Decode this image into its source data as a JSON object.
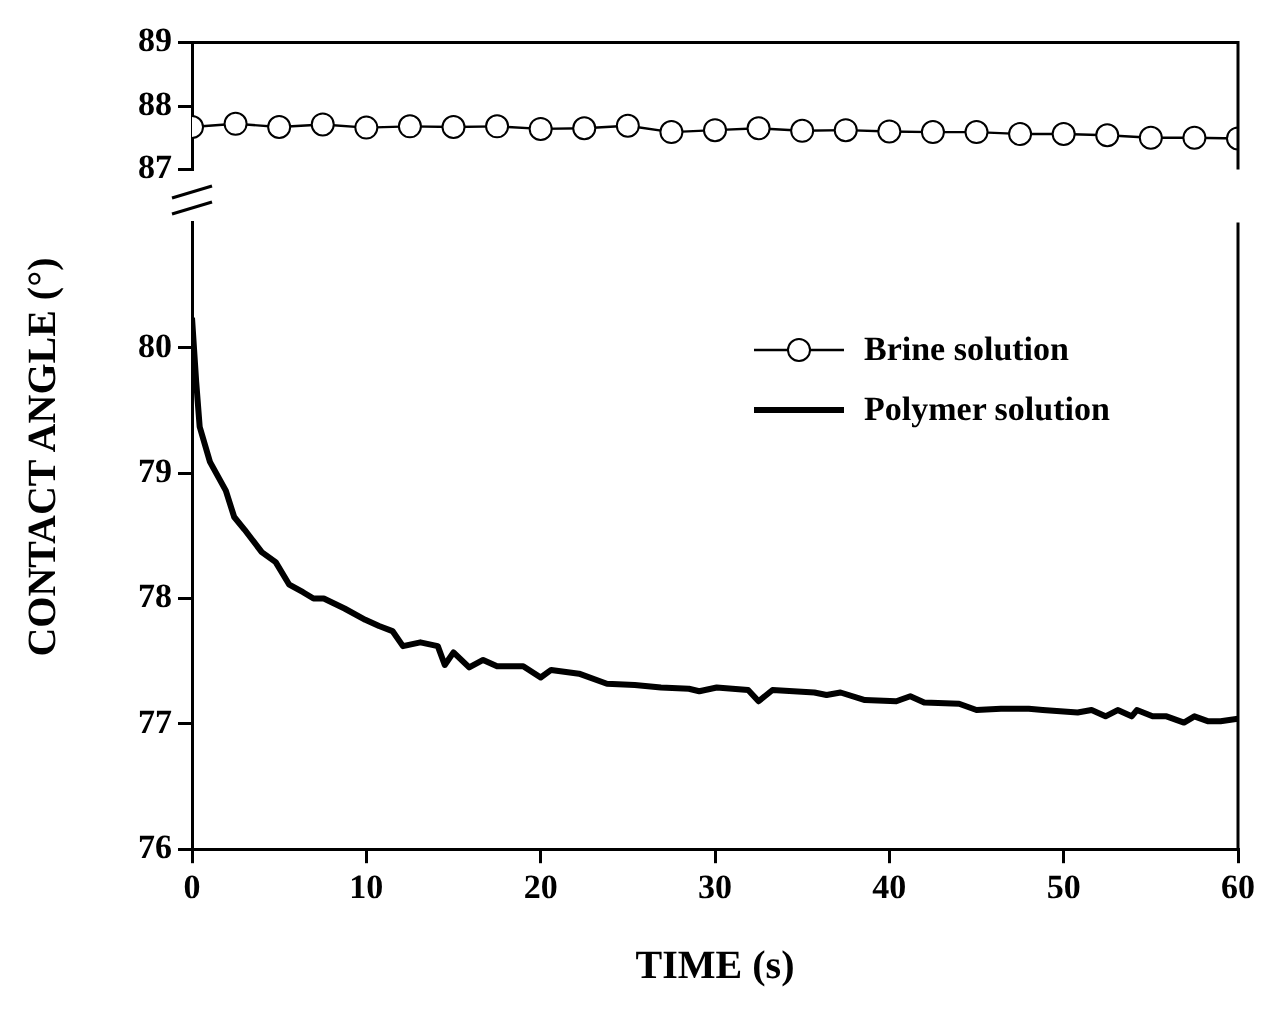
{
  "chart_data": [
    {
      "type": "line",
      "xlim": [
        0,
        60
      ],
      "ylim": [
        87,
        89
      ],
      "yticks": [
        87,
        88,
        89
      ],
      "tick_labels": "y",
      "legend": "right",
      "line_style": "solid",
      "series": [
        {
          "name": "Brine solution",
          "color": "#000000",
          "marker": "circle",
          "x": [
            0,
            2.5,
            5,
            7.5,
            10,
            12.5,
            15,
            17.5,
            20,
            22.5,
            25,
            27.5,
            30,
            32.5,
            35,
            37.5,
            40,
            42.5,
            45,
            47.5,
            50,
            52.5,
            55,
            57.5,
            60
          ],
          "values": [
            87.67,
            87.72,
            87.67,
            87.71,
            87.66,
            87.68,
            87.67,
            87.68,
            87.64,
            87.65,
            87.69,
            87.59,
            87.62,
            87.65,
            87.61,
            87.62,
            87.6,
            87.59,
            87.59,
            87.56,
            87.56,
            87.54,
            87.5,
            87.5,
            87.49
          ]
        }
      ]
    },
    {
      "type": "line",
      "xlabel": "TIME (s)",
      "ylabel": "CONTACT ANGLE (°)",
      "xlim": [
        0,
        60
      ],
      "xticks": [
        0,
        10,
        20,
        30,
        40,
        50,
        60
      ],
      "ylim": [
        76,
        81
      ],
      "yticks": [
        76,
        77,
        78,
        79,
        80
      ],
      "legend": "right",
      "line_style": "solid",
      "series": [
        {
          "name": "Polymer solution",
          "color": "#000000",
          "marker": "none",
          "x": [
            0,
            0.24,
            0.44,
            1.03,
            1.94,
            2.42,
            3.01,
            4.0,
            4.8,
            5.58,
            6.37,
            6.97,
            7.56,
            8.75,
            9.94,
            10.73,
            11.5,
            12.1,
            13.1,
            14.1,
            14.5,
            15.0,
            15.9,
            16.7,
            17.5,
            19.0,
            20.0,
            20.6,
            22.2,
            23.8,
            25.4,
            26.9,
            28.5,
            29.1,
            30.1,
            31.9,
            32.5,
            33.3,
            35.7,
            36.4,
            37.2,
            38.6,
            40.4,
            41.2,
            42.0,
            44.0,
            45.0,
            46.4,
            48.0,
            48.8,
            50.8,
            51.6,
            52.4,
            53.1,
            53.9,
            54.2,
            55.1,
            55.9,
            56.9,
            57.5,
            58.3,
            59.0,
            60.0
          ],
          "values": [
            80.24,
            79.73,
            79.37,
            79.09,
            78.86,
            78.65,
            78.55,
            78.37,
            78.29,
            78.11,
            78.05,
            78.0,
            78.0,
            77.92,
            77.83,
            77.78,
            77.74,
            77.62,
            77.65,
            77.62,
            77.47,
            77.57,
            77.45,
            77.51,
            77.46,
            77.46,
            77.37,
            77.43,
            77.4,
            77.32,
            77.31,
            77.29,
            77.28,
            77.26,
            77.29,
            77.27,
            77.18,
            77.27,
            77.25,
            77.23,
            77.25,
            77.19,
            77.18,
            77.22,
            77.17,
            77.16,
            77.11,
            77.12,
            77.12,
            77.11,
            77.09,
            77.11,
            77.06,
            77.11,
            77.06,
            77.11,
            77.06,
            77.06,
            77.01,
            77.06,
            77.02,
            77.02,
            77.04
          ]
        }
      ]
    }
  ]
}
